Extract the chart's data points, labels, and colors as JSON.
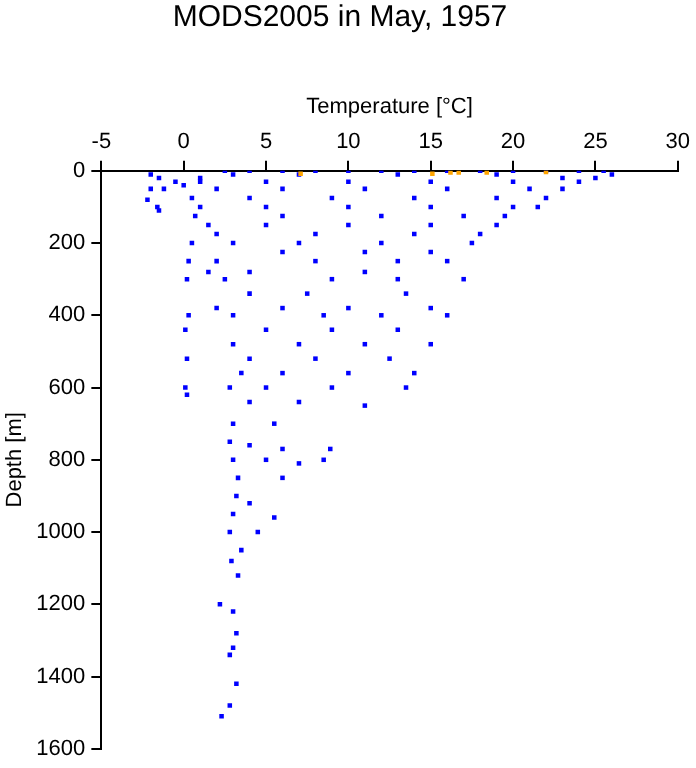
{
  "chart_data": {
    "type": "scatter",
    "title": "MODS2005 in May, 1957",
    "xlabel": "Temperature [°C]",
    "ylabel": "Depth [m]",
    "xlim": [
      -5,
      30
    ],
    "xticks": [
      -5,
      0,
      5,
      10,
      15,
      20,
      25,
      30
    ],
    "ylim": [
      1600,
      0
    ],
    "yticks": [
      0,
      200,
      400,
      600,
      800,
      1000,
      1200,
      1400,
      1600
    ],
    "grid": false,
    "legend": false,
    "marker": "square",
    "series": [
      {
        "color": "#0000ff",
        "x": [
          2.5,
          4,
          6,
          8,
          10,
          12,
          14,
          16,
          18,
          20,
          22,
          24,
          25.5,
          26,
          25,
          3,
          7,
          13,
          19,
          23,
          -2,
          -1.5,
          -2,
          -1.2,
          -2.2,
          -1.6,
          -1.5,
          -0.5,
          0,
          1,
          1,
          5,
          10,
          15,
          20,
          24,
          2,
          6,
          11,
          16,
          21,
          23,
          0.5,
          4,
          9,
          14,
          19,
          22,
          1,
          5,
          10,
          15,
          20,
          21.5,
          0.7,
          6,
          12,
          17,
          19.5,
          1.5,
          5,
          10,
          15,
          19,
          2,
          8,
          14,
          18,
          0.5,
          3,
          7,
          12,
          17.5,
          6,
          11,
          15,
          0.3,
          2,
          8,
          13,
          16,
          1.5,
          4,
          11,
          0.2,
          2.5,
          9,
          13,
          17,
          4,
          7.5,
          13.5,
          2,
          6,
          10,
          15,
          0.3,
          3,
          8.5,
          12,
          16,
          0.1,
          5,
          9,
          13,
          3,
          7,
          11,
          15,
          0.2,
          4,
          8,
          12.5,
          3.5,
          6,
          10,
          14,
          0.1,
          2.8,
          5,
          9,
          13.5,
          0.2,
          4,
          7,
          11,
          3,
          5.5,
          2.8,
          4,
          6,
          8.9,
          3,
          5,
          7,
          8.5,
          3.3,
          6,
          3.2,
          4,
          3,
          5.5,
          2.8,
          4.5,
          3.5,
          2.9,
          3.3,
          2.2,
          3,
          3.2,
          2.8,
          3,
          3.2,
          2.8,
          2.3
        ],
        "values": [
          0,
          0,
          0,
          0,
          0,
          0,
          0,
          0,
          0,
          0,
          0,
          0,
          0,
          10,
          20,
          10,
          10,
          10,
          10,
          20,
          10,
          20,
          50,
          50,
          80,
          100,
          110,
          30,
          40,
          20,
          30,
          30,
          30,
          30,
          30,
          30,
          50,
          50,
          50,
          50,
          50,
          50,
          75,
          75,
          75,
          75,
          75,
          75,
          100,
          100,
          100,
          100,
          100,
          100,
          125,
          125,
          125,
          125,
          125,
          150,
          150,
          150,
          150,
          150,
          175,
          175,
          175,
          175,
          200,
          200,
          200,
          200,
          200,
          225,
          225,
          225,
          250,
          250,
          250,
          250,
          250,
          280,
          280,
          280,
          300,
          300,
          300,
          300,
          300,
          340,
          340,
          340,
          380,
          380,
          380,
          380,
          400,
          400,
          400,
          400,
          400,
          440,
          440,
          440,
          440,
          480,
          480,
          480,
          480,
          520,
          520,
          520,
          520,
          560,
          560,
          560,
          560,
          600,
          600,
          600,
          600,
          600,
          620,
          640,
          640,
          650,
          700,
          700,
          750,
          760,
          770,
          770,
          800,
          800,
          810,
          800,
          850,
          850,
          900,
          920,
          950,
          960,
          1000,
          1000,
          1050,
          1080,
          1120,
          1200,
          1220,
          1280,
          1340,
          1320,
          1420,
          1480,
          1510
        ]
      },
      {
        "color": "#ffa500",
        "x": [
          7.1,
          15.1,
          16.2,
          16.7,
          18.4,
          22
        ],
        "values": [
          8,
          8,
          5,
          5,
          5,
          3
        ]
      }
    ]
  }
}
